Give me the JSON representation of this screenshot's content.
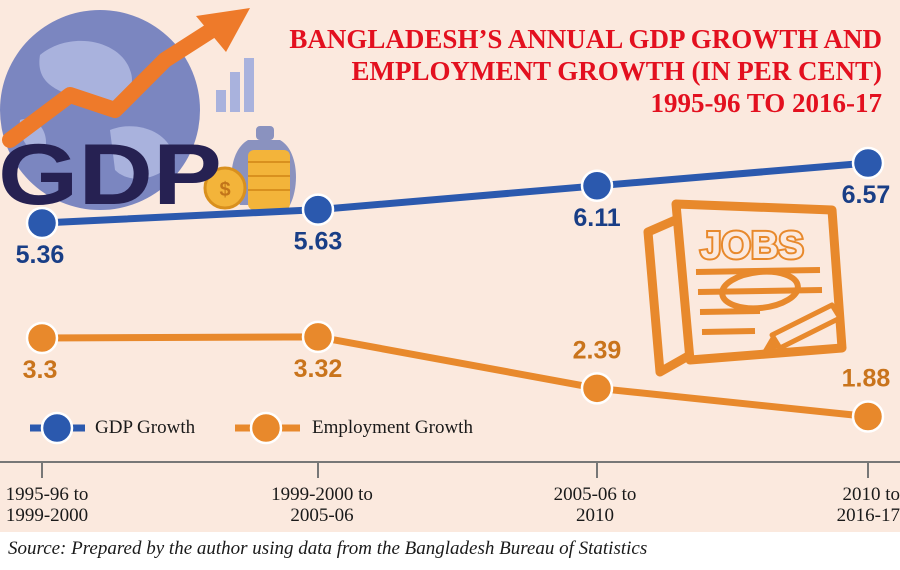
{
  "colors": {
    "background": "#FBE9DE",
    "title": "#E3101F",
    "gdp": "#2B59AE",
    "gdp_dark": "#193E86",
    "employment": "#E8892C",
    "employment_text": "#C9741C",
    "gdp_logo": "#262152"
  },
  "decor": {
    "gdp_logo_text": "GDP",
    "jobs_text": "JOBS",
    "icons": [
      "globe-icon",
      "growth-arrow-icon",
      "bar-chart-icon",
      "coins-icon",
      "money-bag-icon",
      "newspaper-icon",
      "pencil-icon"
    ]
  },
  "chart_data": {
    "type": "line",
    "title": "BANGLADESH’S ANNUAL GDP GROWTH AND EMPLOYMENT GROWTH (IN PER CENT) 1995-96 TO 2016-17",
    "title_lines": [
      "BANGLADESH’S ANNUAL GDP GROWTH AND",
      "EMPLOYMENT GROWTH (IN PER CENT)",
      "1995-96 TO 2016-17"
    ],
    "categories": [
      "1995-96 to\n1999-2000",
      "1999-2000 to\n2005-06",
      "2005-06 to\n2010",
      "2010 to\n2016-17"
    ],
    "series": [
      {
        "name": "GDP Growth",
        "values": [
          5.36,
          5.63,
          6.11,
          6.57
        ],
        "labels": [
          "5.36",
          "5.63",
          "6.11",
          "6.57"
        ]
      },
      {
        "name": "Employment Growth",
        "values": [
          3.3,
          3.32,
          2.39,
          1.88
        ],
        "labels": [
          "3.3",
          "3.32",
          "2.39",
          "1.88"
        ]
      }
    ],
    "xlabel": "",
    "ylabel": "",
    "grid": false,
    "legend": "lower-left",
    "source": "Source: Prepared by the author using data from the Bangladesh Bureau of Statistics"
  }
}
